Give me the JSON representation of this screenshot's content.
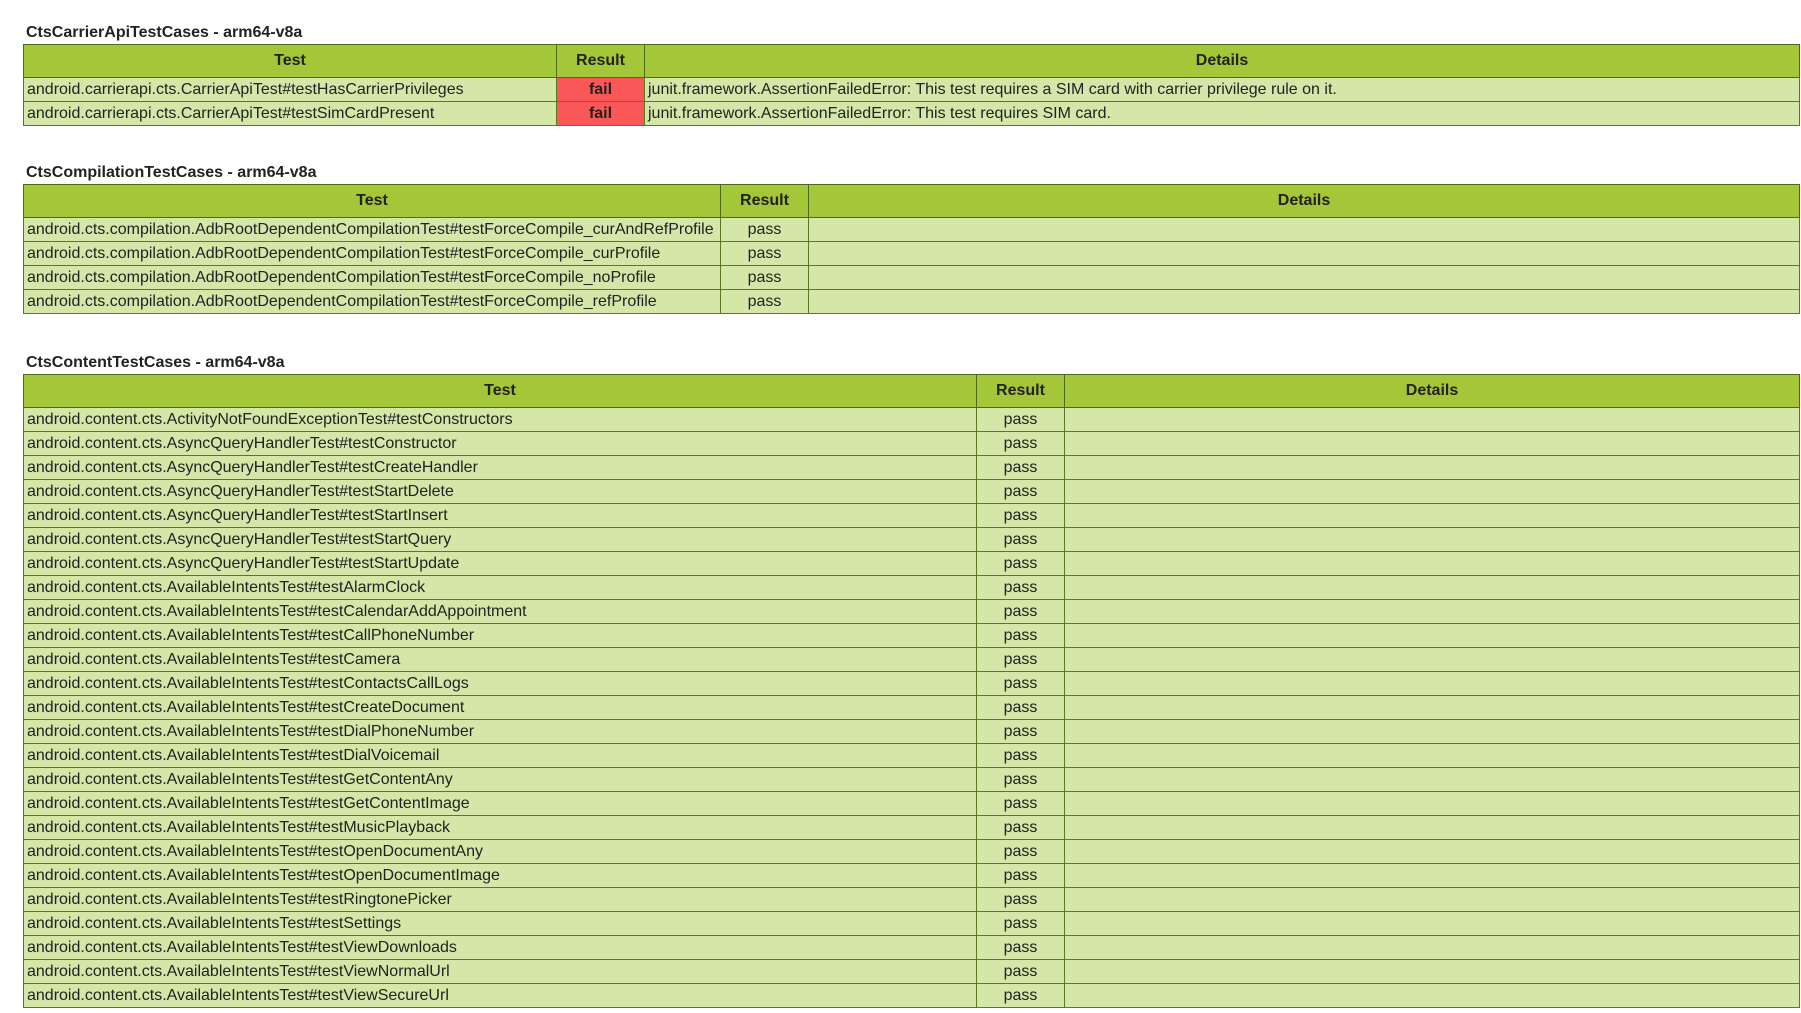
{
  "colors": {
    "header": "#a4c639",
    "row": "#d4e7a9",
    "fail": "#fa5858",
    "border": "#5a7a1f"
  },
  "headers": {
    "test": "Test",
    "result": "Result",
    "details": "Details"
  },
  "modules": [
    {
      "title": "CtsCarrierApiTestCases - arm64-v8a",
      "rows": [
        {
          "test": "android.carrierapi.cts.CarrierApiTest#testHasCarrierPrivileges",
          "result": "fail",
          "details": "junit.framework.AssertionFailedError: This test requires a SIM card with carrier privilege rule on it."
        },
        {
          "test": "android.carrierapi.cts.CarrierApiTest#testSimCardPresent",
          "result": "fail",
          "details": "junit.framework.AssertionFailedError: This test requires SIM card."
        }
      ]
    },
    {
      "title": "CtsCompilationTestCases - arm64-v8a",
      "rows": [
        {
          "test": "android.cts.compilation.AdbRootDependentCompilationTest#testForceCompile_curAndRefProfile",
          "result": "pass",
          "details": ""
        },
        {
          "test": "android.cts.compilation.AdbRootDependentCompilationTest#testForceCompile_curProfile",
          "result": "pass",
          "details": ""
        },
        {
          "test": "android.cts.compilation.AdbRootDependentCompilationTest#testForceCompile_noProfile",
          "result": "pass",
          "details": ""
        },
        {
          "test": "android.cts.compilation.AdbRootDependentCompilationTest#testForceCompile_refProfile",
          "result": "pass",
          "details": ""
        }
      ]
    },
    {
      "title": "CtsContentTestCases - arm64-v8a",
      "rows": [
        {
          "test": "android.content.cts.ActivityNotFoundExceptionTest#testConstructors",
          "result": "pass",
          "details": ""
        },
        {
          "test": "android.content.cts.AsyncQueryHandlerTest#testConstructor",
          "result": "pass",
          "details": ""
        },
        {
          "test": "android.content.cts.AsyncQueryHandlerTest#testCreateHandler",
          "result": "pass",
          "details": ""
        },
        {
          "test": "android.content.cts.AsyncQueryHandlerTest#testStartDelete",
          "result": "pass",
          "details": ""
        },
        {
          "test": "android.content.cts.AsyncQueryHandlerTest#testStartInsert",
          "result": "pass",
          "details": ""
        },
        {
          "test": "android.content.cts.AsyncQueryHandlerTest#testStartQuery",
          "result": "pass",
          "details": ""
        },
        {
          "test": "android.content.cts.AsyncQueryHandlerTest#testStartUpdate",
          "result": "pass",
          "details": ""
        },
        {
          "test": "android.content.cts.AvailableIntentsTest#testAlarmClock",
          "result": "pass",
          "details": ""
        },
        {
          "test": "android.content.cts.AvailableIntentsTest#testCalendarAddAppointment",
          "result": "pass",
          "details": ""
        },
        {
          "test": "android.content.cts.AvailableIntentsTest#testCallPhoneNumber",
          "result": "pass",
          "details": ""
        },
        {
          "test": "android.content.cts.AvailableIntentsTest#testCamera",
          "result": "pass",
          "details": ""
        },
        {
          "test": "android.content.cts.AvailableIntentsTest#testContactsCallLogs",
          "result": "pass",
          "details": ""
        },
        {
          "test": "android.content.cts.AvailableIntentsTest#testCreateDocument",
          "result": "pass",
          "details": ""
        },
        {
          "test": "android.content.cts.AvailableIntentsTest#testDialPhoneNumber",
          "result": "pass",
          "details": ""
        },
        {
          "test": "android.content.cts.AvailableIntentsTest#testDialVoicemail",
          "result": "pass",
          "details": ""
        },
        {
          "test": "android.content.cts.AvailableIntentsTest#testGetContentAny",
          "result": "pass",
          "details": ""
        },
        {
          "test": "android.content.cts.AvailableIntentsTest#testGetContentImage",
          "result": "pass",
          "details": ""
        },
        {
          "test": "android.content.cts.AvailableIntentsTest#testMusicPlayback",
          "result": "pass",
          "details": ""
        },
        {
          "test": "android.content.cts.AvailableIntentsTest#testOpenDocumentAny",
          "result": "pass",
          "details": ""
        },
        {
          "test": "android.content.cts.AvailableIntentsTest#testOpenDocumentImage",
          "result": "pass",
          "details": ""
        },
        {
          "test": "android.content.cts.AvailableIntentsTest#testRingtonePicker",
          "result": "pass",
          "details": ""
        },
        {
          "test": "android.content.cts.AvailableIntentsTest#testSettings",
          "result": "pass",
          "details": ""
        },
        {
          "test": "android.content.cts.AvailableIntentsTest#testViewDownloads",
          "result": "pass",
          "details": ""
        },
        {
          "test": "android.content.cts.AvailableIntentsTest#testViewNormalUrl",
          "result": "pass",
          "details": ""
        },
        {
          "test": "android.content.cts.AvailableIntentsTest#testViewSecureUrl",
          "result": "pass",
          "details": ""
        }
      ]
    }
  ]
}
